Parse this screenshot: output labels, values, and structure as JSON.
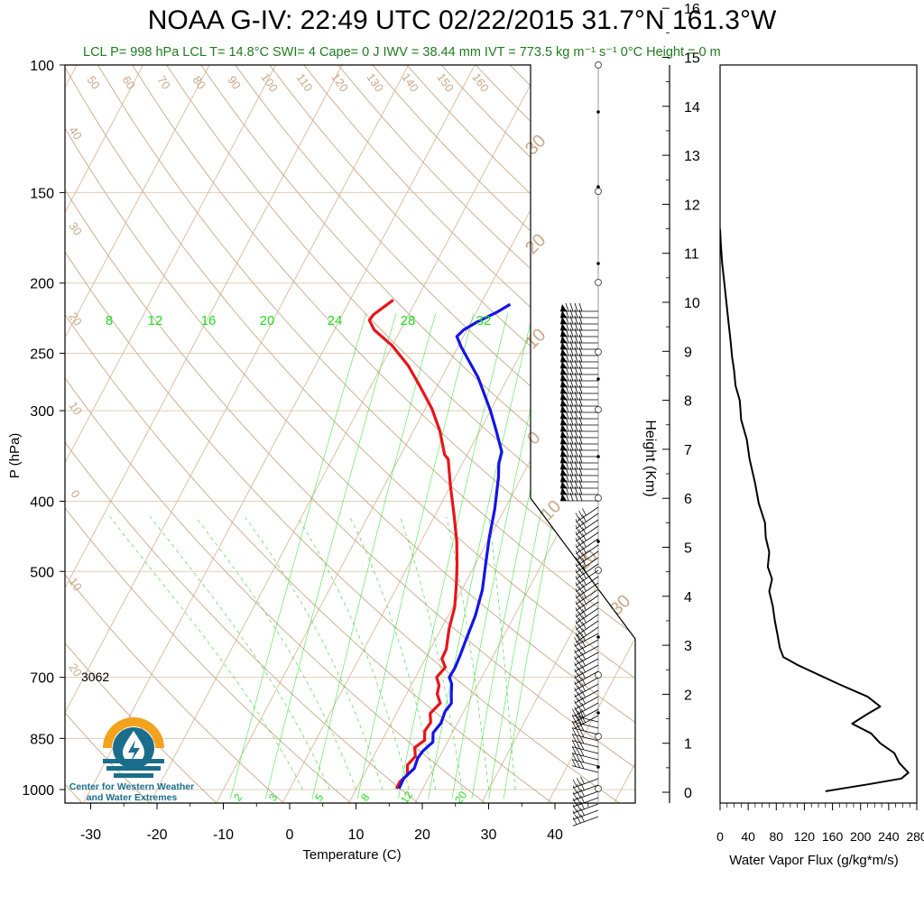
{
  "header": {
    "title": "NOAA G-IV: 22:49 UTC 02/22/2015  31.7°N 161.3°W",
    "subtitle": "LCL P= 998 hPa  LCL T= 14.8°C  SWI= 4  Cape= 0 J  IWV = 38.44 mm  IVT = 773.5 kg m⁻¹ s⁻¹  0°C Height = 0 m"
  },
  "logo": {
    "line1": "Center for Western Weather",
    "line2": "and Water Extremes"
  },
  "colors": {
    "temperature": "#e8141a",
    "dewpoint": "#1414e6",
    "isotherm": "#d9b99b",
    "dry_adiabat": "#c8a888",
    "mixing_ratio": "#22dd22",
    "moist_adiabat": "#33cc33",
    "subtitle": "#1f7a1f",
    "logo_orange": "#f4a21e",
    "logo_teal": "#1a6e8c"
  },
  "chart_data": [
    {
      "type": "line",
      "name": "skew-t",
      "xlabel": "Temperature (C)",
      "ylabel": "P (hPa)",
      "xlim": [
        -33,
        50
      ],
      "ylim": [
        1030,
        100
      ],
      "yscale": "log",
      "x_ticks": [
        "-30",
        "-20",
        "-10",
        "0",
        "10",
        "20",
        "30",
        "40"
      ],
      "x_tick_values": [
        -30,
        -20,
        -10,
        0,
        10,
        20,
        30,
        40
      ],
      "y_ticks": [
        "100",
        "150",
        "200",
        "250",
        "300",
        "400",
        "500",
        "700",
        "850",
        "1000"
      ],
      "y_tick_values": [
        100,
        150,
        200,
        250,
        300,
        400,
        500,
        700,
        850,
        1000
      ],
      "annotation": "3062",
      "isotherm_labels": [
        "50",
        "60",
        "70",
        "80",
        "90",
        "100",
        "110",
        "120",
        "130",
        "140",
        "150",
        "160",
        "40",
        "30",
        "20",
        "10",
        "0",
        "10",
        "20"
      ],
      "adiabat_labels": [
        "30",
        "20",
        "10",
        "0",
        "10",
        "20",
        "30"
      ],
      "mixing_ratio_labels_upper": [
        "8",
        "12",
        "16",
        "20",
        "24",
        "28",
        "32"
      ],
      "mixing_ratio_labels_lower": [
        "2",
        "3",
        "5",
        "8",
        "12",
        "20"
      ],
      "series": [
        {
          "name": "temperature",
          "points": [
            [
              16.0,
              997
            ],
            [
              16.0,
              975
            ],
            [
              16.6,
              955
            ],
            [
              15.8,
              925
            ],
            [
              16.3,
              900
            ],
            [
              15.5,
              875
            ],
            [
              16.4,
              855
            ],
            [
              15.7,
              830
            ],
            [
              15.9,
              808
            ],
            [
              15.1,
              785
            ],
            [
              15.8,
              760
            ],
            [
              14.6,
              738
            ],
            [
              14.2,
              718
            ],
            [
              13.2,
              700
            ],
            [
              13.7,
              678
            ],
            [
              12.5,
              660
            ],
            [
              12.4,
              640
            ],
            [
              11.2,
              600
            ],
            [
              10.3,
              560
            ],
            [
              8.7,
              520
            ],
            [
              7.3,
              490
            ],
            [
              5.4,
              455
            ],
            [
              3.0,
              420
            ],
            [
              -0.1,
              380
            ],
            [
              -2.5,
              350
            ],
            [
              -3.4,
              345
            ],
            [
              -6.0,
              320
            ],
            [
              -9.0,
              298
            ],
            [
              -12.5,
              278
            ],
            [
              -16.0,
              260
            ],
            [
              -20.0,
              244
            ],
            [
              -24.0,
              232
            ],
            [
              -25.5,
              225
            ],
            [
              -25.3,
              221
            ],
            [
              -24.4,
              216
            ],
            [
              -23.5,
              211
            ]
          ]
        },
        {
          "name": "dewpoint",
          "points": [
            [
              16.4,
              997
            ],
            [
              16.3,
              965
            ],
            [
              17.1,
              935
            ],
            [
              16.8,
              905
            ],
            [
              17.0,
              885
            ],
            [
              17.8,
              860
            ],
            [
              17.1,
              835
            ],
            [
              17.5,
              810
            ],
            [
              17.2,
              780
            ],
            [
              17.5,
              760
            ],
            [
              16.8,
              740
            ],
            [
              16.0,
              715
            ],
            [
              15.1,
              700
            ],
            [
              15.2,
              680
            ],
            [
              15.0,
              655
            ],
            [
              14.6,
              620
            ],
            [
              14.1,
              575
            ],
            [
              13.1,
              530
            ],
            [
              11.6,
              490
            ],
            [
              10.0,
              450
            ],
            [
              8.5,
              410
            ],
            [
              6.5,
              370
            ],
            [
              5.5,
              355
            ],
            [
              5.0,
              342
            ],
            [
              2.5,
              320
            ],
            [
              0.0,
              300
            ],
            [
              -4.5,
              270
            ],
            [
              -9.5,
              245
            ],
            [
              -11.0,
              237
            ],
            [
              -10.5,
              232
            ],
            [
              -9.0,
              226
            ],
            [
              -6.8,
              219
            ],
            [
              -5.5,
              214
            ]
          ]
        }
      ]
    },
    {
      "type": "line",
      "name": "water-vapor-flux",
      "xlabel": "Water Vapor Flux (g/kg*m/s)",
      "ylabel": "Height (Km)",
      "xlim": [
        0,
        280
      ],
      "ylim": [
        -0.3,
        16.4
      ],
      "x_ticks": [
        "0",
        "40",
        "80",
        "120",
        "160",
        "200",
        "240",
        "280"
      ],
      "x_tick_values": [
        0,
        40,
        80,
        120,
        160,
        200,
        240,
        280
      ],
      "y_ticks": [
        "0",
        "1",
        "2",
        "3",
        "4",
        "5",
        "6",
        "7",
        "8",
        "9",
        "10",
        "11",
        "12",
        "13",
        "14",
        "15",
        "16"
      ],
      "y_tick_values": [
        0,
        1,
        2,
        3,
        4,
        5,
        6,
        7,
        8,
        9,
        10,
        11,
        12,
        13,
        14,
        15,
        16
      ],
      "series": [
        {
          "name": "flux",
          "points": [
            [
              150,
              0.02
            ],
            [
              175,
              0.08
            ],
            [
              210,
              0.16
            ],
            [
              258,
              0.28
            ],
            [
              268,
              0.4
            ],
            [
              255,
              0.6
            ],
            [
              248,
              0.8
            ],
            [
              228,
              1.0
            ],
            [
              215,
              1.2
            ],
            [
              188,
              1.4
            ],
            [
              210,
              1.6
            ],
            [
              228,
              1.75
            ],
            [
              210,
              1.95
            ],
            [
              170,
              2.2
            ],
            [
              140,
              2.4
            ],
            [
              110,
              2.6
            ],
            [
              90,
              2.76
            ],
            [
              85,
              2.95
            ],
            [
              82,
              3.2
            ],
            [
              78,
              3.5
            ],
            [
              75,
              3.8
            ],
            [
              70,
              4.1
            ],
            [
              74,
              4.35
            ],
            [
              68,
              4.6
            ],
            [
              70,
              4.9
            ],
            [
              65,
              5.2
            ],
            [
              64,
              5.5
            ],
            [
              55,
              5.9
            ],
            [
              50,
              6.3
            ],
            [
              42,
              6.8
            ],
            [
              38,
              7.2
            ],
            [
              30,
              7.6
            ],
            [
              28,
              8.0
            ],
            [
              22,
              8.3
            ],
            [
              20,
              8.6
            ],
            [
              17,
              8.9
            ],
            [
              15,
              9.2
            ],
            [
              12,
              9.6
            ],
            [
              9,
              10.0
            ],
            [
              6,
              10.4
            ],
            [
              3,
              10.8
            ],
            [
              1,
              11.2
            ],
            [
              0,
              11.5
            ]
          ]
        }
      ]
    }
  ]
}
